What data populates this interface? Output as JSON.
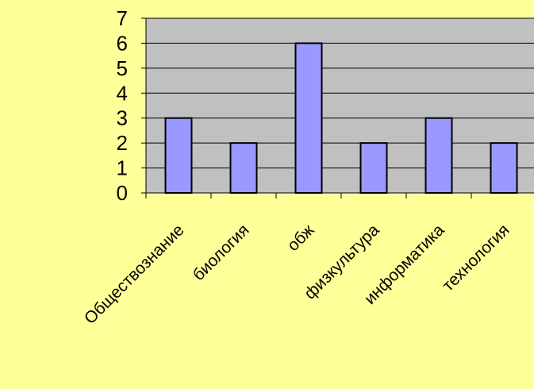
{
  "chart_data": {
    "type": "bar",
    "title": "",
    "xlabel": "",
    "ylabel": "",
    "categories": [
      "Обществознание",
      "биология",
      "обж",
      "физкультура",
      "информатика",
      "технология"
    ],
    "values": [
      3,
      2,
      6,
      2,
      3,
      2
    ],
    "ylim": [
      0,
      7
    ],
    "yticks": [
      0,
      1,
      2,
      3,
      4,
      5,
      6,
      7
    ],
    "grid": true,
    "legend": "none",
    "colors": {
      "page_background": "#FFFF99",
      "plot_background": "#C0C0C0",
      "bar_fill": "#9999FF",
      "bar_stroke": "#000000",
      "axis": "#000000"
    }
  }
}
